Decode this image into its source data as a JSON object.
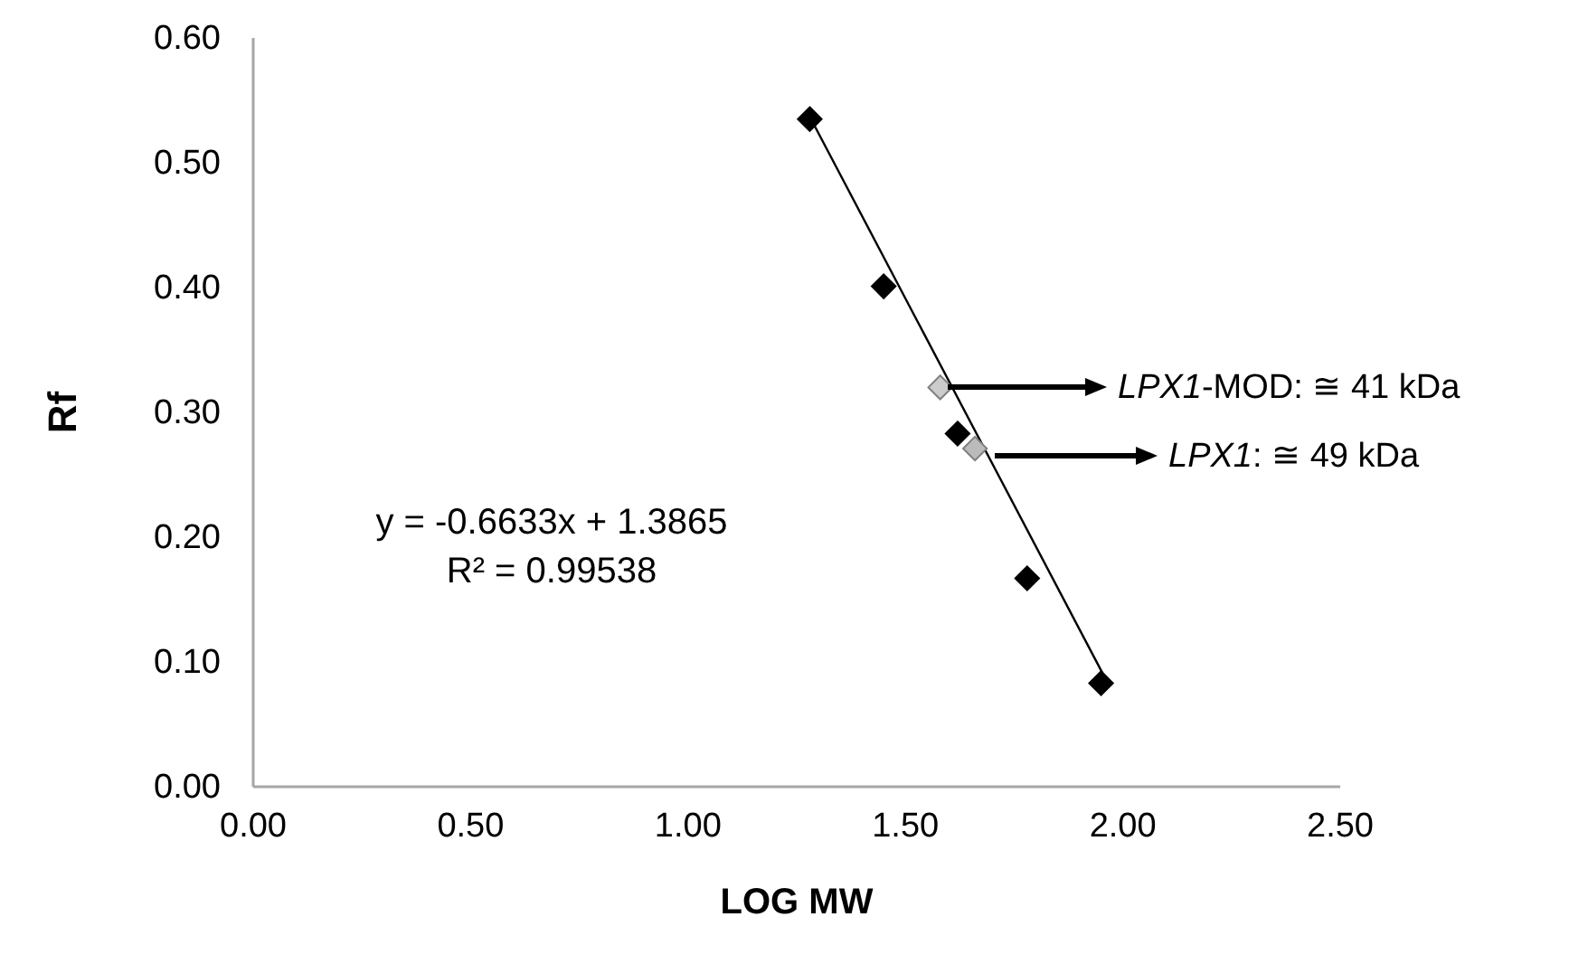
{
  "chart_data": {
    "type": "scatter",
    "xlabel": "LOG MW",
    "ylabel": "Rf",
    "xlim": [
      0,
      2.5
    ],
    "ylim": [
      0,
      0.6
    ],
    "xticks": [
      {
        "value": 0,
        "label": "0.00"
      },
      {
        "value": 0.5,
        "label": "0.50"
      },
      {
        "value": 1,
        "label": "1.00"
      },
      {
        "value": 1.5,
        "label": "1.50"
      },
      {
        "value": 2,
        "label": "2.00"
      },
      {
        "value": 2.5,
        "label": "2.50"
      }
    ],
    "yticks": [
      {
        "value": 0,
        "label": "0.00"
      },
      {
        "value": 0.1,
        "label": "0.10"
      },
      {
        "value": 0.2,
        "label": "0.20"
      },
      {
        "value": 0.3,
        "label": "0.30"
      },
      {
        "value": 0.4,
        "label": "0.40"
      },
      {
        "value": 0.5,
        "label": "0.50"
      },
      {
        "value": 0.6,
        "label": "0.60"
      }
    ],
    "grid": false,
    "marker": "diamond",
    "series": [
      {
        "color": "#000000",
        "x": [
          1.28,
          1.45,
          1.62,
          1.78,
          1.95
        ],
        "values": [
          0.535,
          0.401,
          0.283,
          0.167,
          0.083
        ]
      },
      {
        "color": "#cccccc",
        "x": [
          1.58
        ],
        "values": [
          0.32
        ]
      },
      {
        "color": "#bbbbbb",
        "x": [
          1.66
        ],
        "values": [
          0.271
        ]
      },
      {
        "type": "line",
        "color": "#000000",
        "x": [
          1.28,
          1.97
        ],
        "values": [
          0.537,
          0.08
        ],
        "marker": "none",
        "line_style": "solid"
      }
    ],
    "annotations": [
      "LPX1-MOD: ≅ 41 kDa",
      "LPX1: ≅ 49 kDa",
      "y = -0.6633x + 1.3865",
      "R² = 0.99538"
    ]
  }
}
